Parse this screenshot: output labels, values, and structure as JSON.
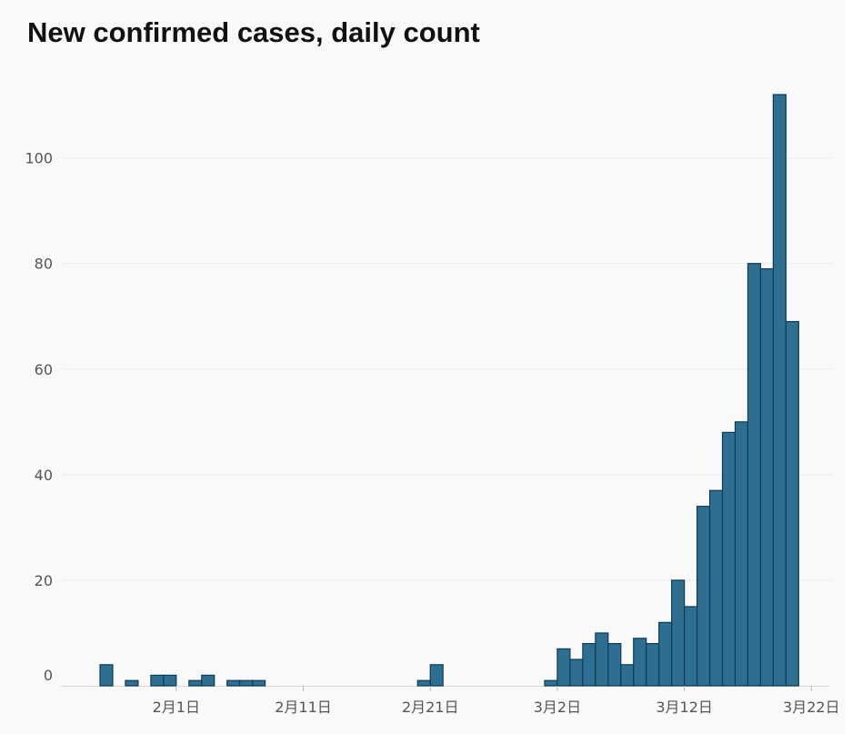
{
  "chart_data": {
    "type": "bar",
    "title": "New confirmed cases, daily count",
    "xlabel": "",
    "ylabel": "",
    "x_start": "2020-01-23",
    "x_labels": [
      {
        "day": 9,
        "label": "2月1日"
      },
      {
        "day": 19,
        "label": "2月11日"
      },
      {
        "day": 29,
        "label": "2月21日"
      },
      {
        "day": 39,
        "label": "3月2日"
      },
      {
        "day": 49,
        "label": "3月12日"
      },
      {
        "day": 59,
        "label": "3月22日"
      }
    ],
    "values": [
      0,
      0,
      0,
      4,
      0,
      1,
      0,
      2,
      2,
      0,
      1,
      2,
      0,
      1,
      1,
      1,
      0,
      0,
      0,
      0,
      0,
      0,
      0,
      0,
      0,
      0,
      0,
      0,
      1,
      4,
      0,
      0,
      0,
      0,
      0,
      0,
      0,
      0,
      1,
      7,
      5,
      8,
      10,
      8,
      4,
      9,
      8,
      12,
      20,
      15,
      34,
      37,
      48,
      50,
      80,
      79,
      112,
      69
    ],
    "ylim": [
      0,
      115
    ],
    "yticks": [
      0,
      20,
      40,
      60,
      80,
      100
    ],
    "xlim": [
      0,
      61
    ],
    "grid": true,
    "bar_color": "#2e6f91",
    "edge_color": "#0f3c55"
  }
}
